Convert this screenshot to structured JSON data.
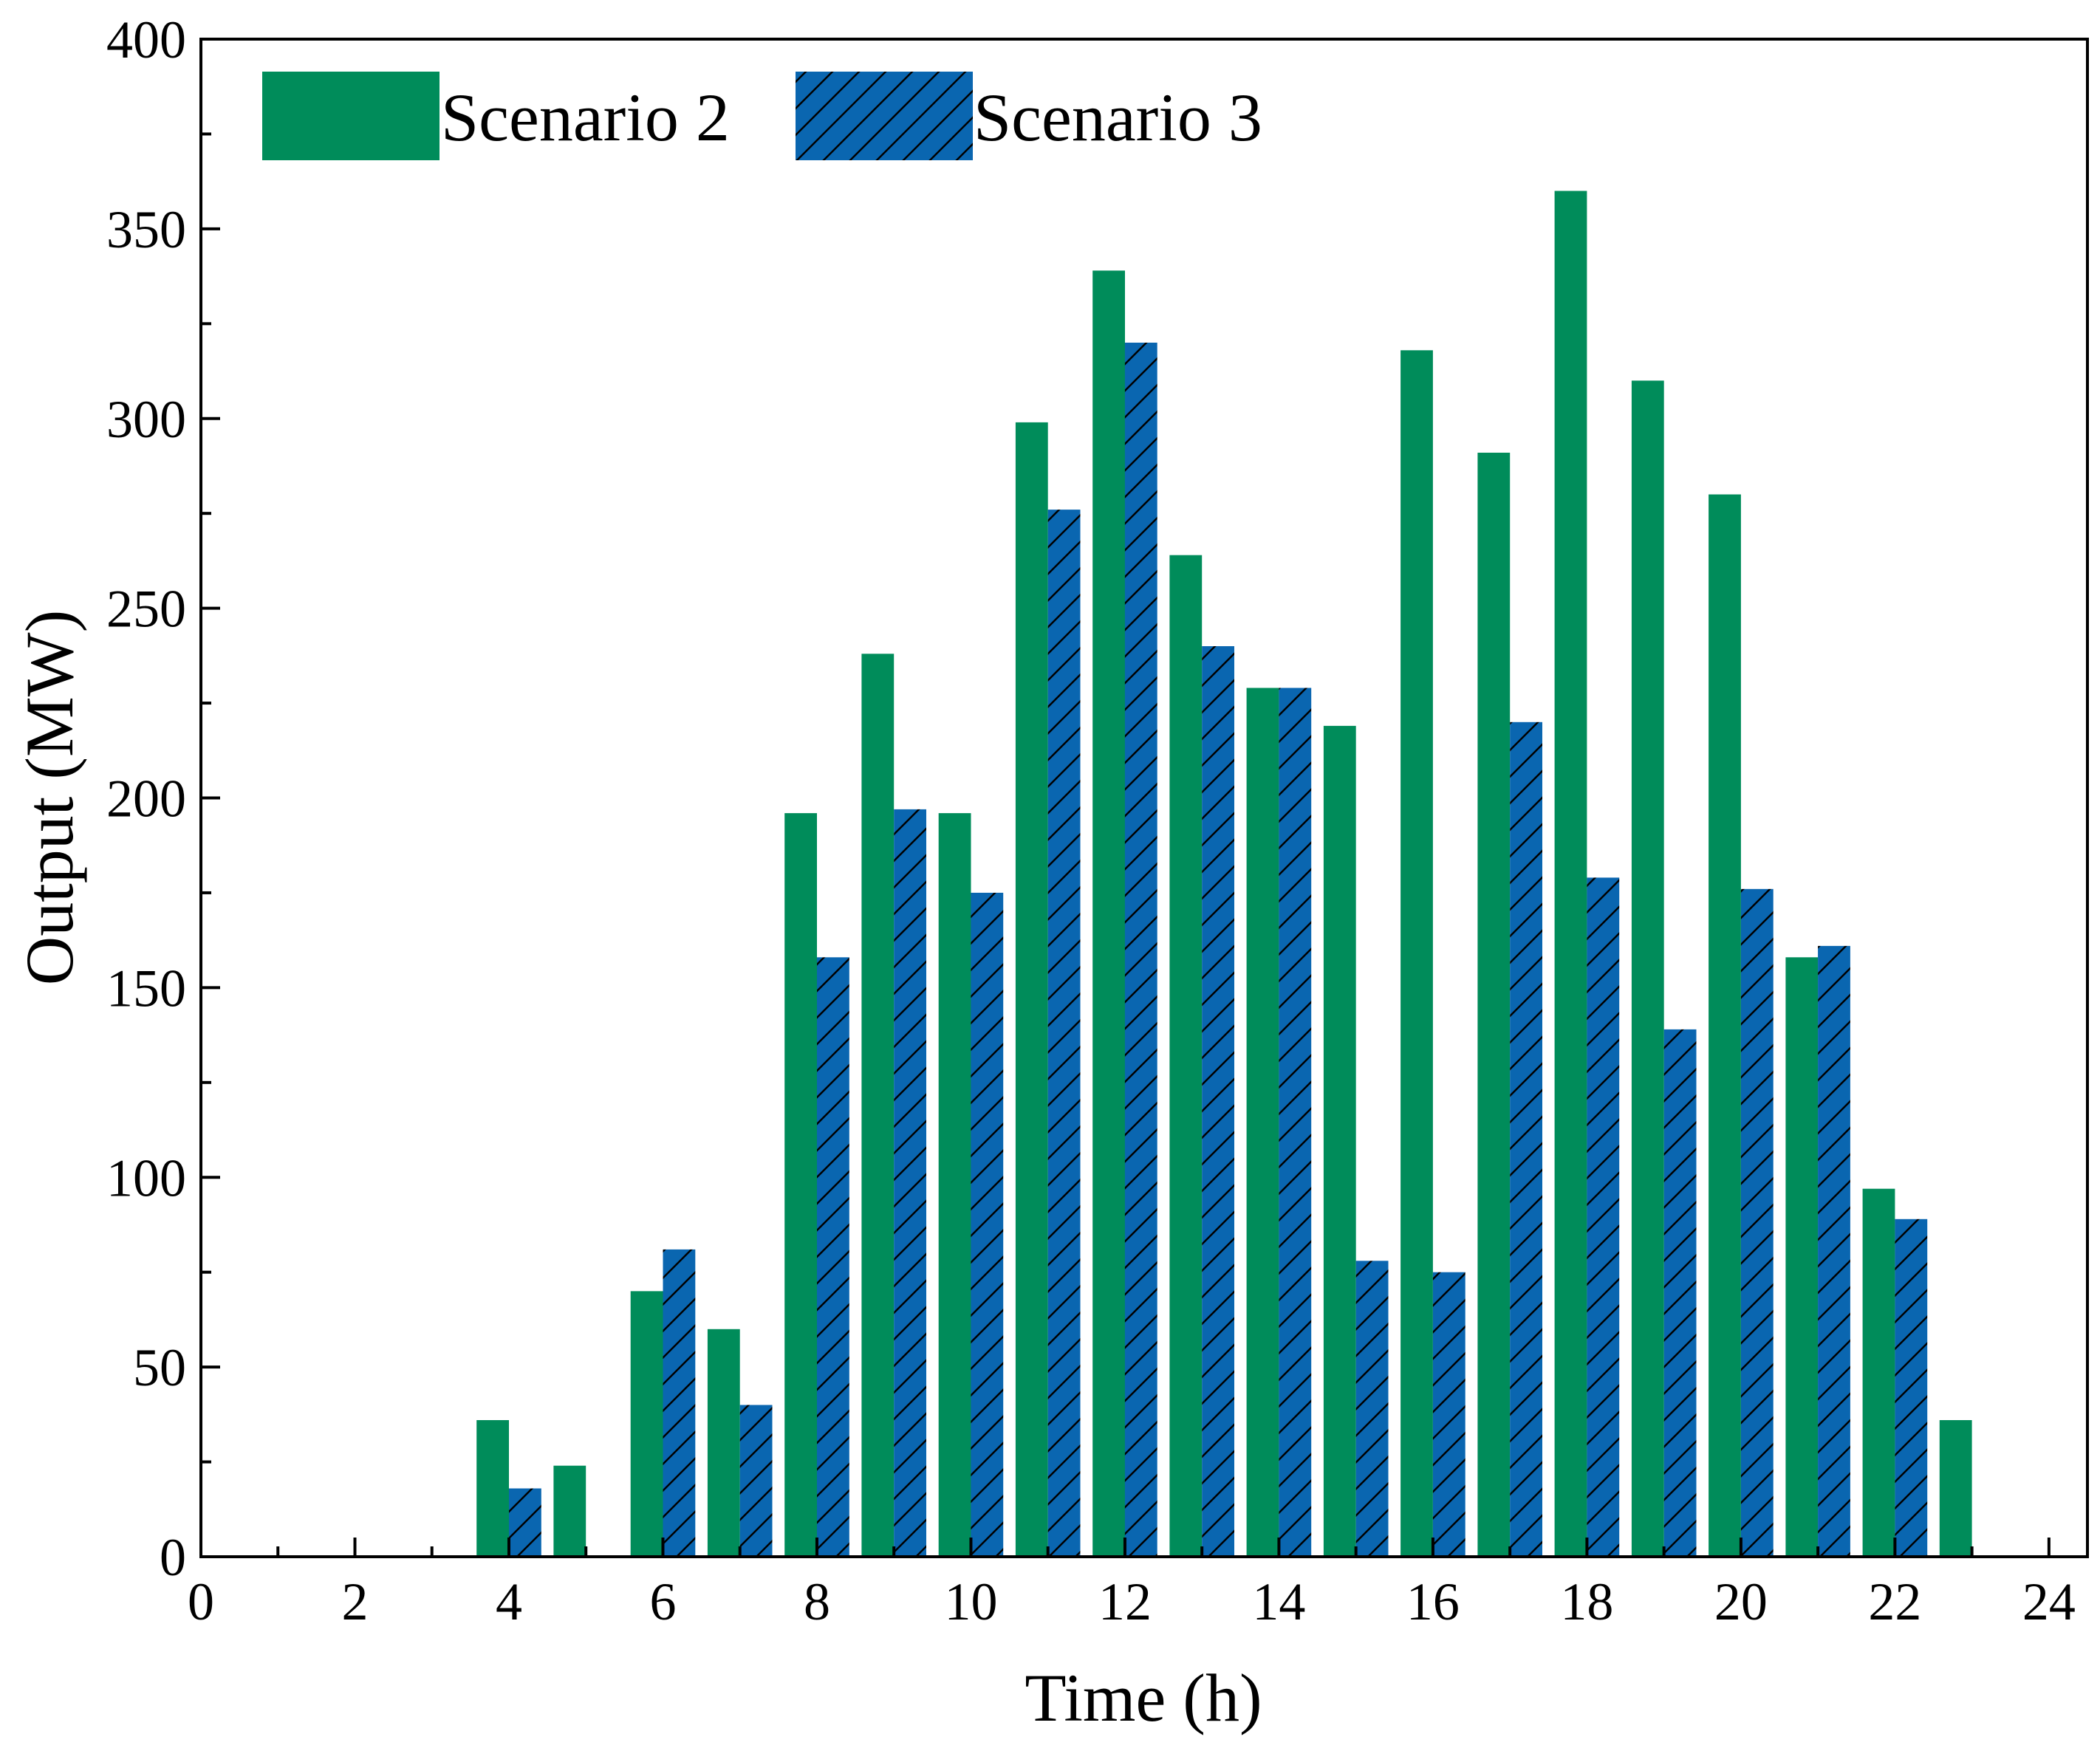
{
  "chart_data": {
    "type": "bar",
    "title": "",
    "xlabel": "Time (h)",
    "ylabel": "Output (MW)",
    "xlim": [
      0,
      24.5
    ],
    "ylim": [
      0,
      400
    ],
    "x_ticks": [
      0,
      2,
      4,
      6,
      8,
      10,
      12,
      14,
      16,
      18,
      20,
      22,
      24
    ],
    "y_ticks": [
      0,
      50,
      100,
      150,
      200,
      250,
      300,
      350,
      400
    ],
    "x": [
      1,
      2,
      3,
      4,
      5,
      6,
      7,
      8,
      9,
      10,
      11,
      12,
      13,
      14,
      15,
      16,
      17,
      18,
      19,
      20,
      21,
      22,
      23,
      24
    ],
    "series": [
      {
        "name": "Scenario 2",
        "color": "#008c5a",
        "pattern": "solid",
        "values": [
          0,
          0,
          0,
          36,
          24,
          70,
          60,
          196,
          238,
          196,
          299,
          339,
          264,
          229,
          219,
          318,
          291,
          360,
          310,
          280,
          158,
          97,
          36,
          0
        ]
      },
      {
        "name": "Scenario 3",
        "color": "#0a66b0",
        "pattern": "hatched",
        "values": [
          0,
          0,
          0,
          18,
          0,
          81,
          40,
          158,
          197,
          175,
          276,
          320,
          240,
          229,
          78,
          75,
          220,
          179,
          139,
          176,
          161,
          89,
          0,
          0
        ]
      }
    ],
    "legend": {
      "placement": "top-left",
      "orientation": "horizontal"
    },
    "grid": false
  }
}
